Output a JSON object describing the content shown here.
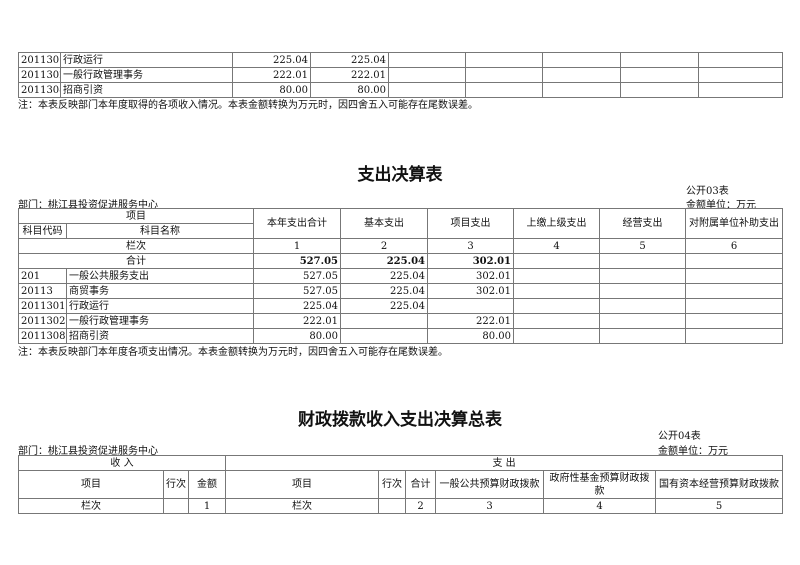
{
  "income_tail": {
    "rows": [
      {
        "code": "2011301",
        "name": "行政运行",
        "c1": "225.04",
        "c2": "225.04"
      },
      {
        "code": "2011302",
        "name": "一般行政管理事务",
        "c1": "222.01",
        "c2": "222.01"
      },
      {
        "code": "2011308",
        "name": "招商引资",
        "c1": "80.00",
        "c2": "80.00"
      }
    ],
    "note": "注：本表反映部门本年度取得的各项收入情况。本表金额转换为万元时，因四舍五入可能存在尾数误差。"
  },
  "expense": {
    "title": "支出决算表",
    "form_no": "公开03表",
    "unit": "金额单位：万元",
    "dept": "部门：桃江县投资促进服务中心",
    "h_item": "项目",
    "h_code": "科目代码",
    "h_name": "科目名称",
    "cols": [
      "本年支出合计",
      "基本支出",
      "项目支出",
      "上缴上级支出",
      "经营支出",
      "对附属单位补助支出"
    ],
    "lanci": "栏次",
    "col_nums": [
      "1",
      "2",
      "3",
      "4",
      "5",
      "6"
    ],
    "total_label": "合计",
    "total": [
      "527.05",
      "225.04",
      "302.01"
    ],
    "rows": [
      {
        "code": "201",
        "name": "一般公共服务支出",
        "v": [
          "527.05",
          "225.04",
          "302.01"
        ]
      },
      {
        "code": "20113",
        "name": "商贸事务",
        "v": [
          "527.05",
          "225.04",
          "302.01"
        ]
      },
      {
        "code": "2011301",
        "name": "行政运行",
        "v": [
          "225.04",
          "225.04",
          ""
        ]
      },
      {
        "code": "2011302",
        "name": "一般行政管理事务",
        "v": [
          "222.01",
          "",
          "222.01"
        ]
      },
      {
        "code": "2011308",
        "name": "招商引资",
        "v": [
          "80.00",
          "",
          "80.00"
        ]
      }
    ],
    "note": "注：本表反映部门本年度各项支出情况。本表金额转换为万元时，因四舍五入可能存在尾数误差。"
  },
  "fiscal": {
    "title": "财政拨款收入支出决算总表",
    "form_no": "公开04表",
    "unit": "金额单位：万元",
    "dept": "部门：桃江县投资促进服务中心",
    "income": "收 入",
    "expense": "支 出",
    "item": "项目",
    "line": "行次",
    "amount": "金额",
    "total": "合计",
    "c3": "一般公共预算财政拨款",
    "c4": "政府性基金预算财政拨款",
    "c5": "国有资本经营预算财政拨款",
    "lanci": "栏次",
    "nums": [
      "1",
      "2",
      "3",
      "4",
      "5"
    ]
  }
}
